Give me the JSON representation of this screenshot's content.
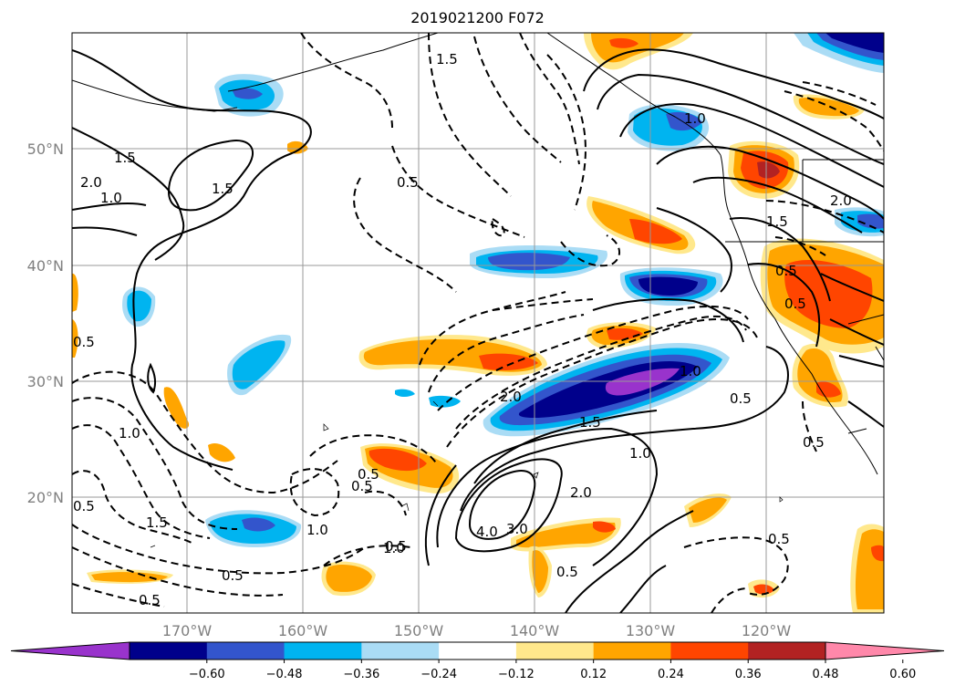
{
  "title": "2019021200 F072",
  "lat_labels": [
    "50°N",
    "40°N",
    "30°N",
    "20°N"
  ],
  "lon_labels": [
    "170°W",
    "160°W",
    "150°W",
    "140°W",
    "130°W",
    "120°W"
  ],
  "colorbar": {
    "ticks": [
      "−0.60",
      "−0.48",
      "−0.36",
      "−0.24",
      "−0.12",
      "0.12",
      "0.24",
      "0.36",
      "0.48",
      "0.60"
    ],
    "colors": [
      "#9933cc",
      "#00008b",
      "#3355cc",
      "#00b4f0",
      "#aadcf5",
      "#ffffff",
      "#ffe88c",
      "#ffa500",
      "#ff4500",
      "#b22222",
      "#ff88aa"
    ]
  },
  "contour_labels": [
    "1.5",
    "0.5",
    "1.5",
    "2.0",
    "1.0",
    "1.5",
    "2.0",
    "1.0",
    "1.5",
    "0.5",
    "0.5",
    "2.0",
    "1.0",
    "1.5",
    "0.5",
    "2.0",
    "1.0",
    "4.0",
    "3.0",
    "0.5",
    "1.0",
    "1.5",
    "0.5",
    "0.5",
    "0.5",
    "1.0",
    "0.5",
    "0.5",
    "0.5",
    "0.5",
    "1.0",
    "0.5",
    "0.5"
  ]
}
